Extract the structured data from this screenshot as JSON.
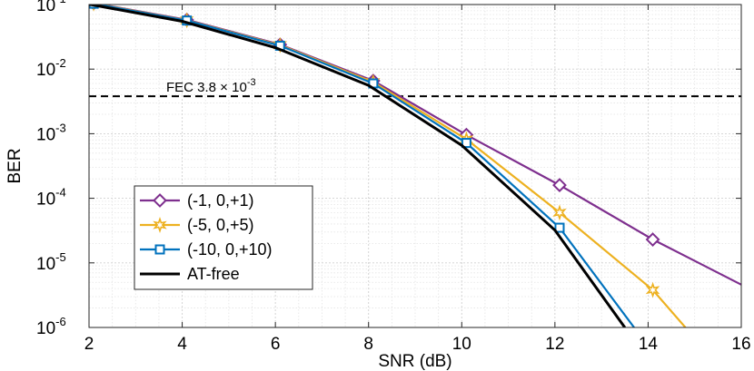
{
  "chart_data": {
    "type": "line",
    "title": "",
    "xlabel": "SNR (dB)",
    "ylabel": "BER",
    "yscale": "log",
    "xlim": [
      2,
      16
    ],
    "ylim_exponents": [
      -6,
      -1
    ],
    "x_ticks": [
      2,
      4,
      6,
      8,
      10,
      12,
      14,
      16
    ],
    "y_ticks": [
      {
        "base": "10",
        "exp": "-1"
      },
      {
        "base": "10",
        "exp": "-2"
      },
      {
        "base": "10",
        "exp": "-3"
      },
      {
        "base": "10",
        "exp": "-4"
      },
      {
        "base": "10",
        "exp": "-5"
      },
      {
        "base": "10",
        "exp": "-6"
      }
    ],
    "grid": true,
    "legend_position": "bottom-left",
    "threshold": {
      "value": 0.0038,
      "label_prefix": "FEC  3.8 × 10",
      "label_exp": "-3",
      "style": "dashed",
      "color": "#000000"
    },
    "series": [
      {
        "name": "(-1, 0,+1)",
        "color": "#7E2F8E",
        "marker": "diamond",
        "x": [
          2.1,
          4.1,
          6.1,
          8.1,
          10.1,
          12.1,
          14.1,
          16.0
        ],
        "y": [
          0.105,
          0.058,
          0.024,
          0.0066,
          0.00096,
          0.00016,
          2.3e-05,
          4.6e-06
        ]
      },
      {
        "name": "(-5, 0,+5)",
        "color": "#EDB120",
        "marker": "star",
        "x": [
          2.1,
          4.1,
          6.1,
          8.1,
          10.1,
          12.1,
          14.1,
          14.8
        ],
        "y": [
          0.104,
          0.057,
          0.0235,
          0.0063,
          0.00082,
          6e-05,
          3.8e-06,
          1e-06
        ]
      },
      {
        "name": "(-10, 0,+10)",
        "color": "#0072BD",
        "marker": "square",
        "x": [
          2.1,
          4.1,
          6.1,
          8.1,
          10.1,
          12.1,
          13.7
        ],
        "y": [
          0.103,
          0.0565,
          0.023,
          0.006,
          0.00072,
          3.5e-05,
          1e-06
        ]
      },
      {
        "name": "AT-free",
        "color": "#000000",
        "marker": "none",
        "x": [
          2.0,
          4.0,
          6.0,
          8.0,
          10.0,
          12.0,
          13.5
        ],
        "y": [
          0.101,
          0.055,
          0.0215,
          0.0056,
          0.00066,
          3.2e-05,
          1e-06
        ]
      }
    ]
  }
}
